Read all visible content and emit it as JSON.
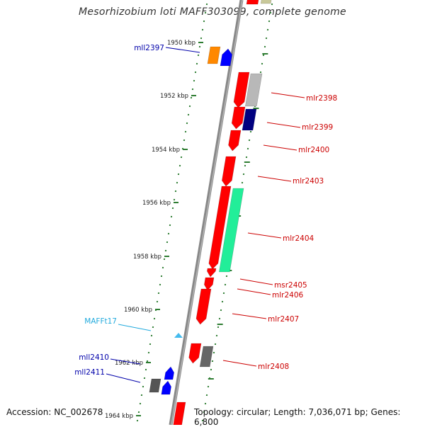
{
  "title": "Mesorhizobium loti MAFF303099, complete genome",
  "footer": {
    "accession": "Accession: NC_002678",
    "summary": "Topology: circular; Length: 7,036,071 bp; Genes: 6,800"
  },
  "colors": {
    "backbone": "#888888",
    "tick": "#2e7d32",
    "minus_strand_label": "#0000aa",
    "plus_strand_label": "#cc0000",
    "trna_label": "#22aadd"
  },
  "scale_labels": [
    "1950 kbp",
    "1952 kbp",
    "1954 kbp",
    "1956 kbp",
    "1958 kbp",
    "1960 kbp",
    "1962 kbp",
    "1964 kbp"
  ],
  "genes_left": [
    {
      "id": "mll2397",
      "color": "#0000aa"
    },
    {
      "id": "MAFFt17",
      "color": "#22aadd"
    },
    {
      "id": "mll2410",
      "color": "#0000aa"
    },
    {
      "id": "mll2411",
      "color": "#0000aa"
    }
  ],
  "genes_right": [
    {
      "id": "mlr2398"
    },
    {
      "id": "mlr2399"
    },
    {
      "id": "mlr2400"
    },
    {
      "id": "mlr2403"
    },
    {
      "id": "mlr2404"
    },
    {
      "id": "msr2405"
    },
    {
      "id": "mlr2406"
    },
    {
      "id": "mlr2407"
    },
    {
      "id": "mlr2408"
    }
  ]
}
